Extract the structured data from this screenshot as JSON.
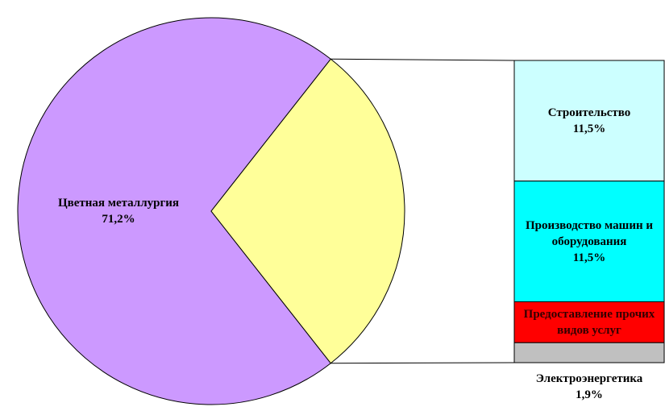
{
  "chart_data": {
    "type": "pie_of_bar",
    "categories": [
      "Цветная металлургия",
      "Строительство",
      "Производство машин и оборудования",
      "Предоставление прочих видов услуг",
      "Электроэнергетика"
    ],
    "values": [
      71.2,
      11.5,
      11.5,
      3.9,
      1.9
    ],
    "value_labels": [
      "71,2%",
      "11,5%",
      "11,5%",
      null,
      "1,9%"
    ],
    "colors": [
      "#cc99ff",
      "#ccffff",
      "#00ffff",
      "#ff0000",
      "#c0c0c0"
    ],
    "other_color": "#ffff99"
  }
}
